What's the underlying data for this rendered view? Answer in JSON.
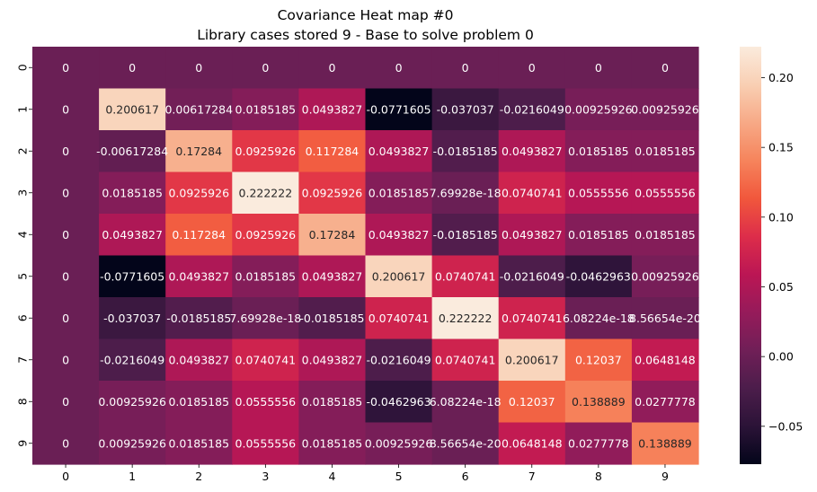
{
  "chart_data": {
    "type": "heatmap",
    "title": "Covariance Heat map #0",
    "subtitle": "Library cases stored 9 - Base to solve problem 0",
    "xlabel": "",
    "ylabel": "",
    "x_categories": [
      "0",
      "1",
      "2",
      "3",
      "4",
      "5",
      "6",
      "7",
      "8",
      "9"
    ],
    "y_categories": [
      "0",
      "1",
      "2",
      "3",
      "4",
      "5",
      "6",
      "7",
      "8",
      "9"
    ],
    "values": [
      [
        0,
        0,
        0,
        0,
        0,
        0,
        0,
        0,
        0,
        0
      ],
      [
        0,
        0.200617,
        0.00617284,
        0.0185185,
        0.0493827,
        -0.0771605,
        -0.037037,
        -0.0216049,
        0.00925926,
        0.00925926
      ],
      [
        0,
        -0.00617284,
        0.17284,
        0.0925926,
        0.117284,
        0.0493827,
        -0.0185185,
        0.0493827,
        0.0185185,
        0.0185185
      ],
      [
        0,
        0.0185185,
        0.0925926,
        0.222222,
        0.0925926,
        0.0185185,
        7.69928e-18,
        0.0740741,
        0.0555556,
        0.0555556
      ],
      [
        0,
        0.0493827,
        0.117284,
        0.0925926,
        0.17284,
        0.0493827,
        -0.0185185,
        0.0493827,
        0.0185185,
        0.0185185
      ],
      [
        0,
        -0.0771605,
        0.0493827,
        0.0185185,
        0.0493827,
        0.200617,
        0.0740741,
        -0.0216049,
        -0.0462963,
        0.00925926
      ],
      [
        0,
        -0.037037,
        -0.0185185,
        7.69928e-18,
        -0.0185185,
        0.0740741,
        0.222222,
        0.0740741,
        6.08224e-18,
        8.56654e-20
      ],
      [
        0,
        -0.0216049,
        0.0493827,
        0.0740741,
        0.0493827,
        -0.0216049,
        0.0740741,
        0.200617,
        0.12037,
        0.0648148
      ],
      [
        0,
        0.00925926,
        0.0185185,
        0.0555556,
        0.0185185,
        -0.0462963,
        6.08224e-18,
        0.12037,
        0.138889,
        0.0277778
      ],
      [
        0,
        0.00925926,
        0.0185185,
        0.0555556,
        0.0185185,
        0.00925926,
        8.56654e-20,
        0.0648148,
        0.0277778,
        0.138889
      ]
    ],
    "cell_labels": [
      [
        "0",
        "0",
        "0",
        "0",
        "0",
        "0",
        "0",
        "0",
        "0",
        "0"
      ],
      [
        "0",
        "0.200617",
        "0.00617284",
        "0.0185185",
        "0.0493827",
        "-0.0771605",
        "-0.037037",
        "-0.0216049",
        "0.00925926",
        "0.00925926"
      ],
      [
        "0",
        "-0.00617284",
        "0.17284",
        "0.0925926",
        "0.117284",
        "0.0493827",
        "-0.0185185",
        "0.0493827",
        "0.0185185",
        "0.0185185"
      ],
      [
        "0",
        "0.0185185",
        "0.0925926",
        "0.222222",
        "0.0925926",
        "0.0185185",
        "7.69928e-18",
        "0.0740741",
        "0.0555556",
        "0.0555556"
      ],
      [
        "0",
        "0.0493827",
        "0.117284",
        "0.0925926",
        "0.17284",
        "0.0493827",
        "-0.0185185",
        "0.0493827",
        "0.0185185",
        "0.0185185"
      ],
      [
        "0",
        "-0.0771605",
        "0.0493827",
        "0.0185185",
        "0.0493827",
        "0.200617",
        "0.0740741",
        "-0.0216049",
        "-0.0462963",
        "0.00925926"
      ],
      [
        "0",
        "-0.037037",
        "-0.0185185",
        "7.69928e-18",
        "-0.0185185",
        "0.0740741",
        "0.222222",
        "0.0740741",
        "6.08224e-18",
        "8.56654e-20"
      ],
      [
        "0",
        "-0.0216049",
        "0.0493827",
        "0.0740741",
        "0.0493827",
        "-0.0216049",
        "0.0740741",
        "0.200617",
        "0.12037",
        "0.0648148"
      ],
      [
        "0",
        "0.00925926",
        "0.0185185",
        "0.0555556",
        "0.0185185",
        "-0.0462963",
        "6.08224e-18",
        "0.12037",
        "0.138889",
        "0.0277778"
      ],
      [
        "0",
        "0.00925926",
        "0.0185185",
        "0.0555556",
        "0.0185185",
        "0.00925926",
        "8.56654e-20",
        "0.0648148",
        "0.0277778",
        "0.138889"
      ]
    ],
    "colorbar": {
      "range": [
        -0.0771605,
        0.222222
      ],
      "ticks": [
        -0.05,
        0.0,
        0.05,
        0.1,
        0.15,
        0.2
      ],
      "tick_labels": [
        "−0.05",
        "0.00",
        "0.05",
        "0.10",
        "0.15",
        "0.20"
      ],
      "colormap": "rocket",
      "colormap_stops": [
        "#03051a",
        "#2b1337",
        "#4c1d4b",
        "#701f57",
        "#961b5a",
        "#bb1654",
        "#dd2d4a",
        "#f1573c",
        "#f6845c",
        "#f7a986",
        "#f9cfb3",
        "#faebdd"
      ]
    },
    "grid": false,
    "legend": "colorbar-right"
  }
}
